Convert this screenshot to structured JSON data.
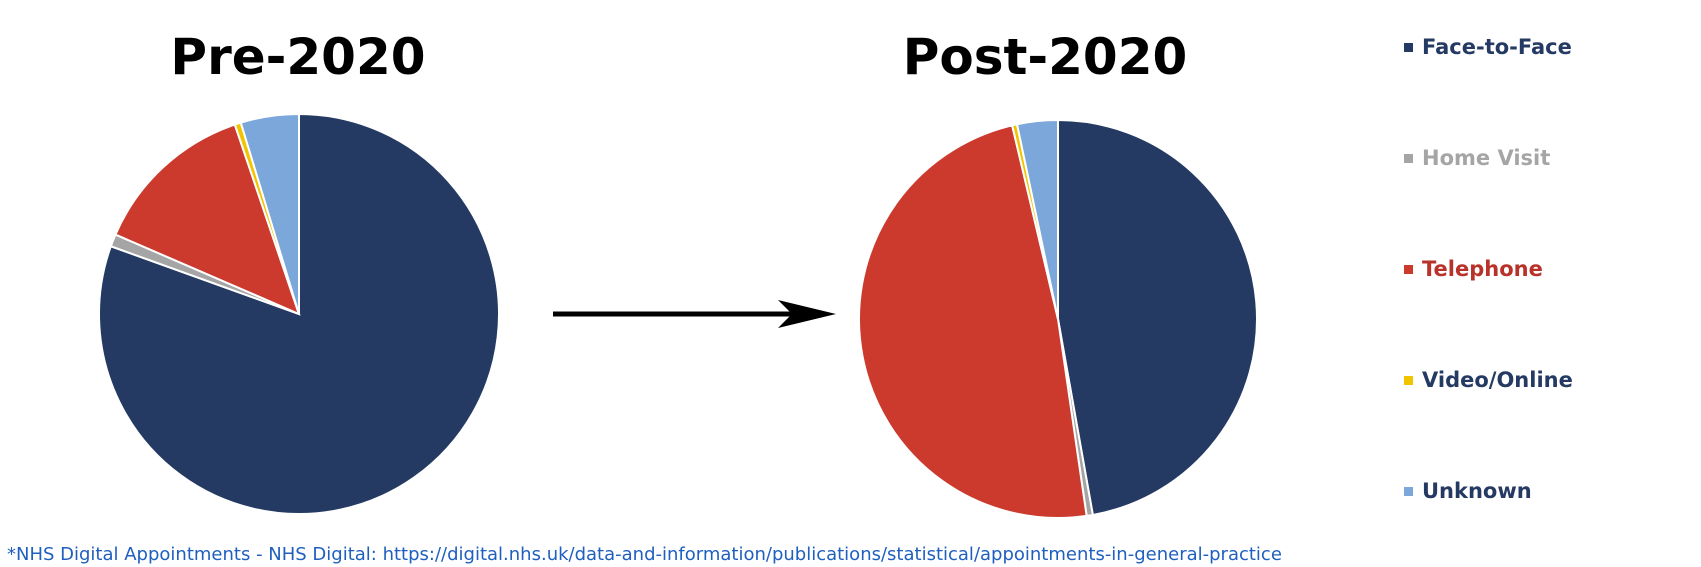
{
  "chart_data": [
    {
      "type": "pie",
      "title": "Pre-2020",
      "categories": [
        "Face-to-Face",
        "Home Visit",
        "Telephone",
        "Video/Online",
        "Unknown"
      ],
      "values": [
        80.5,
        1.0,
        13.3,
        0.5,
        4.7
      ]
    },
    {
      "type": "pie",
      "title": "Post-2020",
      "categories": [
        "Face-to-Face",
        "Home Visit",
        "Telephone",
        "Video/Online",
        "Unknown"
      ],
      "values": [
        47.2,
        0.5,
        48.6,
        0.4,
        3.3
      ]
    }
  ],
  "legend": {
    "items": [
      {
        "label": "Face-to-Face",
        "color": "#243a63"
      },
      {
        "label": "Home Visit",
        "color": "#a5a5a5"
      },
      {
        "label": "Telephone",
        "color": "#cc3a2e"
      },
      {
        "label": "Video/Online",
        "color": "#f2c400"
      },
      {
        "label": "Unknown",
        "color": "#7ba7da"
      }
    ],
    "placement": "right"
  },
  "source": "*NHS Digital Appointments - NHS Digital: https://digital.nhs.uk/data-and-information/publications/statistical/appointments-in-general-practice",
  "icons": {
    "arrow": "right-arrow-icon"
  }
}
